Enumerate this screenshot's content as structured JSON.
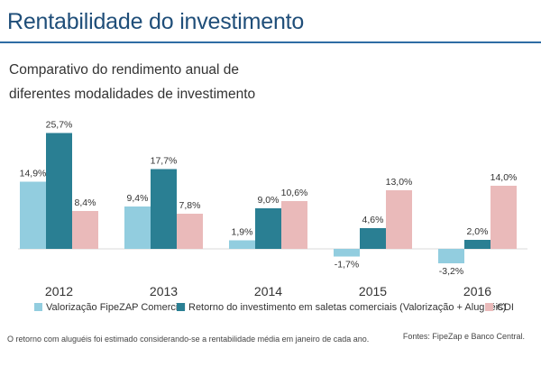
{
  "header": {
    "title": "Rentabilidade do investimento",
    "subtitle_line1": "Comparativo do rendimento anual de",
    "subtitle_line2": "diferentes modalidades de investimento"
  },
  "chart_data": {
    "type": "bar",
    "categories": [
      "2012",
      "2013",
      "2014",
      "2015",
      "2016"
    ],
    "series": [
      {
        "name": "Valorização FipeZAP Comercial",
        "color": "#92cddf",
        "values": [
          14.9,
          9.4,
          1.9,
          -1.7,
          -3.2
        ],
        "labels": [
          "14,9%",
          "9,4%",
          "1,9%",
          "-1,7%",
          "-3,2%"
        ]
      },
      {
        "name": "Retorno do investimento em saletas comerciais (Valorização + Aluguéis)",
        "color": "#2a7f93",
        "values": [
          25.7,
          17.7,
          9.0,
          4.6,
          2.0
        ],
        "labels": [
          "25,7%",
          "17,7%",
          "9,0%",
          "4,6%",
          "2,0%"
        ]
      },
      {
        "name": "CDI",
        "color": "#eababa",
        "values": [
          8.4,
          7.8,
          10.6,
          13.0,
          14.0
        ],
        "labels": [
          "8,4%",
          "7,8%",
          "10,6%",
          "13,0%",
          "14,0%"
        ]
      }
    ],
    "ylim": [
      -5,
      30
    ],
    "legend_position": "bottom",
    "grid": false
  },
  "footer": {
    "note": "O retorno com aluguéis foi estimado considerando-se a rentabilidade média em janeiro de cada ano.",
    "source": "Fontes: FipeZap e Banco Central."
  }
}
